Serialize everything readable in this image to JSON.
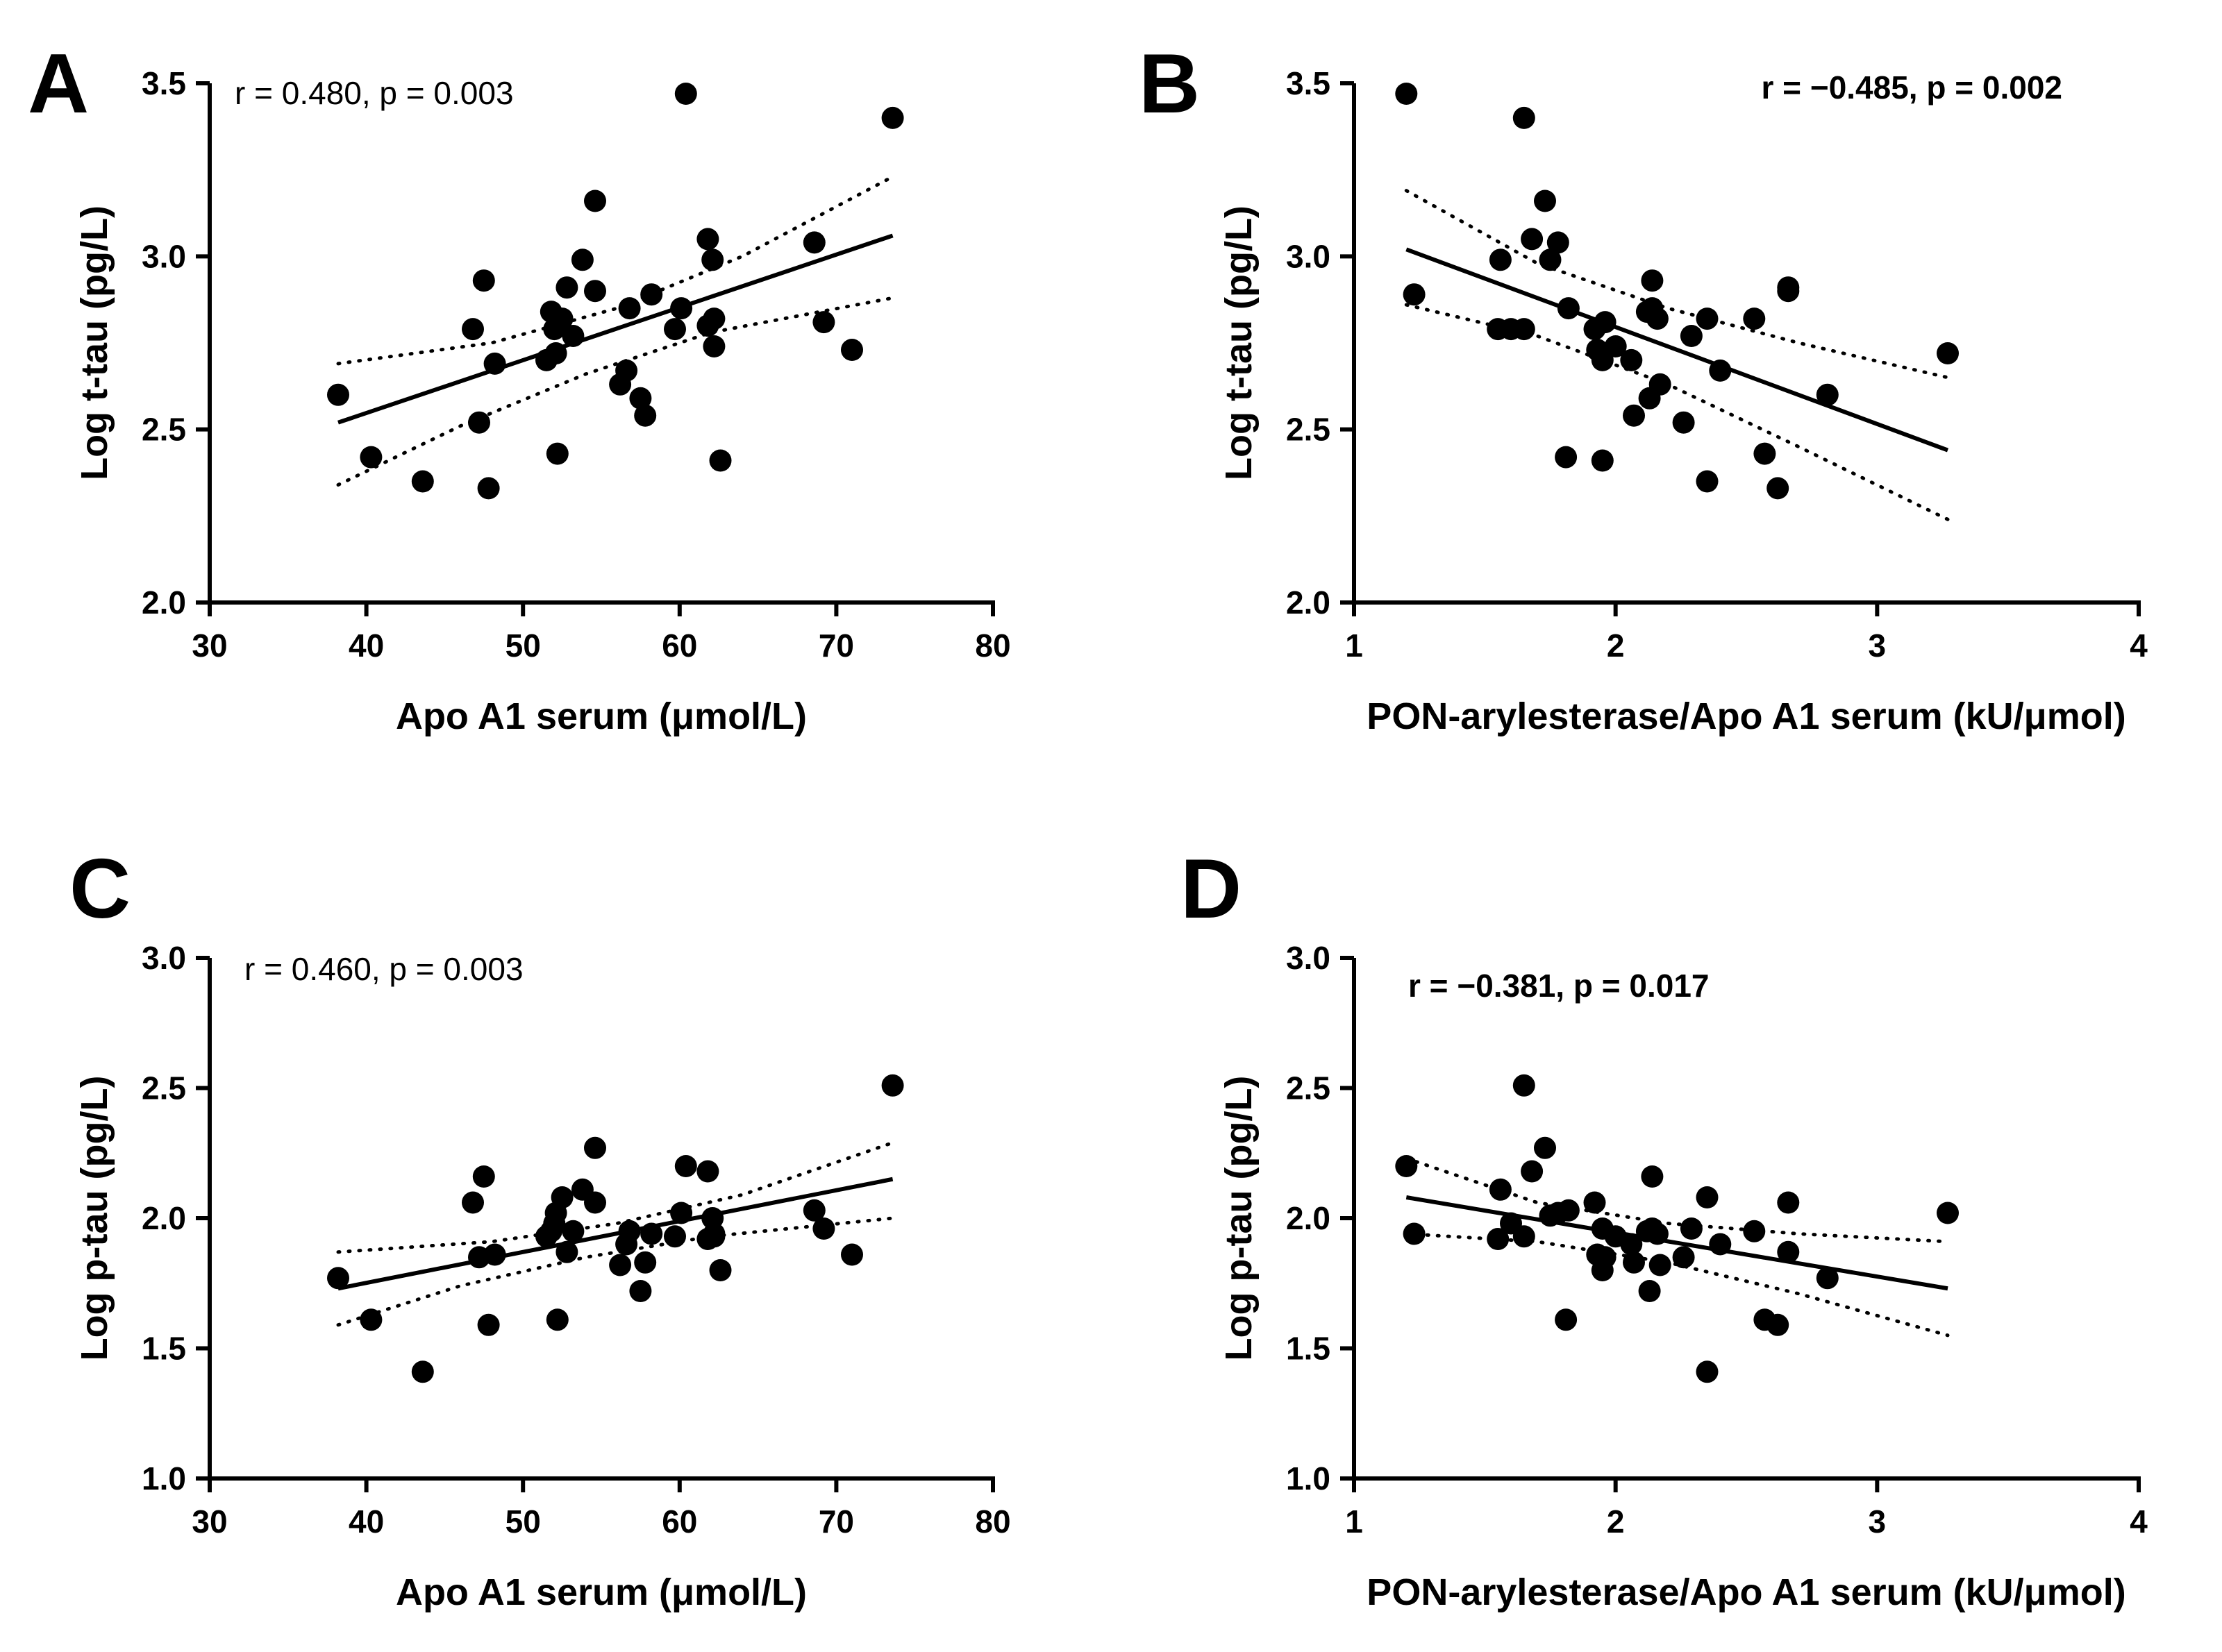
{
  "chart_data": [
    {
      "panel": "A",
      "type": "scatter",
      "xlabel": "Apo A1 serum (μmol/L)",
      "ylabel": "Log t-tau (pg/L)",
      "xlim": [
        30,
        80
      ],
      "ylim": [
        2.0,
        3.5
      ],
      "xticks": [
        30,
        40,
        50,
        60,
        70,
        80
      ],
      "yticks": [
        2.0,
        2.5,
        3.0,
        3.5
      ],
      "xtick_labels": [
        "30",
        "40",
        "50",
        "60",
        "70",
        "80"
      ],
      "ytick_labels": [
        "2.0",
        "2.5",
        "3.0",
        "3.5"
      ],
      "annotation": "r = 0.480, p = 0.003",
      "annotation_bold": false,
      "annotation_anchor": "top-left",
      "points": [
        [
          38.2,
          2.6
        ],
        [
          40.3,
          2.42
        ],
        [
          43.6,
          2.35
        ],
        [
          46.8,
          2.79
        ],
        [
          47.2,
          2.52
        ],
        [
          47.5,
          2.93
        ],
        [
          47.8,
          2.33
        ],
        [
          48.2,
          2.69
        ],
        [
          51.5,
          2.7
        ],
        [
          51.8,
          2.84
        ],
        [
          52.0,
          2.79
        ],
        [
          52.1,
          2.72
        ],
        [
          52.2,
          2.43
        ],
        [
          52.5,
          2.82
        ],
        [
          52.8,
          2.91
        ],
        [
          53.2,
          2.77
        ],
        [
          53.8,
          2.99
        ],
        [
          54.6,
          3.16
        ],
        [
          54.6,
          2.9
        ],
        [
          56.2,
          2.63
        ],
        [
          56.6,
          2.67
        ],
        [
          56.8,
          2.85
        ],
        [
          57.5,
          2.59
        ],
        [
          57.8,
          2.54
        ],
        [
          58.2,
          2.89
        ],
        [
          59.7,
          2.79
        ],
        [
          60.1,
          2.85
        ],
        [
          60.4,
          3.47
        ],
        [
          61.8,
          3.05
        ],
        [
          61.8,
          2.8
        ],
        [
          62.1,
          2.99
        ],
        [
          62.2,
          2.82
        ],
        [
          62.2,
          2.74
        ],
        [
          62.6,
          2.41
        ],
        [
          68.6,
          3.04
        ],
        [
          69.2,
          2.81
        ],
        [
          71.0,
          2.73
        ],
        [
          73.6,
          3.4
        ]
      ],
      "fit_line": [
        [
          38.2,
          2.52
        ],
        [
          73.6,
          3.06
        ]
      ],
      "ci_upper": [
        [
          38.2,
          2.69
        ],
        [
          48.0,
          2.75
        ],
        [
          56.0,
          2.85
        ],
        [
          64.0,
          3.0
        ],
        [
          73.6,
          3.23
        ]
      ],
      "ci_lower": [
        [
          38.2,
          2.34
        ],
        [
          46.0,
          2.51
        ],
        [
          54.0,
          2.66
        ],
        [
          62.0,
          2.78
        ],
        [
          73.6,
          2.88
        ]
      ]
    },
    {
      "panel": "B",
      "type": "scatter",
      "xlabel": "PON-arylesterase/Apo A1 serum (kU/μmol)",
      "ylabel": "Log t-tau (pg/L)",
      "xlim": [
        1,
        4
      ],
      "ylim": [
        2.0,
        3.5
      ],
      "xticks": [
        1,
        2,
        3,
        4
      ],
      "yticks": [
        2.0,
        2.5,
        3.0,
        3.5
      ],
      "xtick_labels": [
        "1",
        "2",
        "3",
        "4"
      ],
      "ytick_labels": [
        "2.0",
        "2.5",
        "3.0",
        "3.5"
      ],
      "annotation": "r = −0.485, p = 0.002",
      "annotation_bold": true,
      "annotation_anchor": "top-right",
      "points": [
        [
          1.2,
          3.47
        ],
        [
          1.23,
          2.89
        ],
        [
          1.55,
          2.79
        ],
        [
          1.56,
          2.99
        ],
        [
          1.6,
          2.79
        ],
        [
          1.65,
          2.79
        ],
        [
          1.65,
          3.4
        ],
        [
          1.68,
          3.05
        ],
        [
          1.73,
          3.16
        ],
        [
          1.75,
          2.99
        ],
        [
          1.78,
          3.04
        ],
        [
          1.81,
          2.42
        ],
        [
          1.82,
          2.85
        ],
        [
          1.92,
          2.79
        ],
        [
          1.93,
          2.73
        ],
        [
          1.95,
          2.41
        ],
        [
          1.95,
          2.7
        ],
        [
          1.96,
          2.81
        ],
        [
          2.0,
          2.74
        ],
        [
          2.06,
          2.7
        ],
        [
          2.07,
          2.54
        ],
        [
          2.12,
          2.84
        ],
        [
          2.13,
          2.59
        ],
        [
          2.14,
          2.85
        ],
        [
          2.14,
          2.93
        ],
        [
          2.16,
          2.82
        ],
        [
          2.17,
          2.63
        ],
        [
          2.26,
          2.52
        ],
        [
          2.29,
          2.77
        ],
        [
          2.35,
          2.82
        ],
        [
          2.35,
          2.35
        ],
        [
          2.4,
          2.67
        ],
        [
          2.53,
          2.82
        ],
        [
          2.57,
          2.43
        ],
        [
          2.62,
          2.33
        ],
        [
          2.66,
          2.91
        ],
        [
          2.66,
          2.9
        ],
        [
          2.81,
          2.6
        ],
        [
          3.27,
          2.72
        ]
      ],
      "fit_line": [
        [
          1.2,
          3.02
        ],
        [
          3.27,
          2.44
        ]
      ],
      "ci_upper": [
        [
          1.2,
          3.19
        ],
        [
          1.7,
          2.98
        ],
        [
          2.2,
          2.85
        ],
        [
          2.7,
          2.75
        ],
        [
          3.27,
          2.65
        ]
      ],
      "ci_lower": [
        [
          1.2,
          2.86
        ],
        [
          1.7,
          2.77
        ],
        [
          2.2,
          2.63
        ],
        [
          2.7,
          2.45
        ],
        [
          3.27,
          2.24
        ]
      ]
    },
    {
      "panel": "C",
      "type": "scatter",
      "xlabel": "Apo A1 serum (μmol/L)",
      "ylabel": "Log p-tau (pg/L)",
      "xlim": [
        30,
        80
      ],
      "ylim": [
        1.0,
        3.0
      ],
      "xticks": [
        30,
        40,
        50,
        60,
        70,
        80
      ],
      "yticks": [
        1.0,
        1.5,
        2.0,
        2.5,
        3.0
      ],
      "xtick_labels": [
        "30",
        "40",
        "50",
        "60",
        "70",
        "80"
      ],
      "ytick_labels": [
        "1.0",
        "1.5",
        "2.0",
        "2.5",
        "3.0"
      ],
      "annotation": "r = 0.460, p = 0.003",
      "annotation_bold": false,
      "annotation_anchor": "top-left",
      "points": [
        [
          38.2,
          1.77
        ],
        [
          40.3,
          1.61
        ],
        [
          43.6,
          1.41
        ],
        [
          46.8,
          2.06
        ],
        [
          47.2,
          1.85
        ],
        [
          47.5,
          2.16
        ],
        [
          47.8,
          1.59
        ],
        [
          48.2,
          1.86
        ],
        [
          51.5,
          1.93
        ],
        [
          51.8,
          1.95
        ],
        [
          52.0,
          1.98
        ],
        [
          52.1,
          2.02
        ],
        [
          52.2,
          1.61
        ],
        [
          52.5,
          2.08
        ],
        [
          52.8,
          1.87
        ],
        [
          53.2,
          1.95
        ],
        [
          53.8,
          2.11
        ],
        [
          54.6,
          2.27
        ],
        [
          54.6,
          2.06
        ],
        [
          56.2,
          1.82
        ],
        [
          56.6,
          1.9
        ],
        [
          56.8,
          1.95
        ],
        [
          57.5,
          1.72
        ],
        [
          57.8,
          1.83
        ],
        [
          58.2,
          1.94
        ],
        [
          59.7,
          1.93
        ],
        [
          60.1,
          2.02
        ],
        [
          60.4,
          2.2
        ],
        [
          61.8,
          2.18
        ],
        [
          61.8,
          1.92
        ],
        [
          62.1,
          2.0
        ],
        [
          62.2,
          1.94
        ],
        [
          62.2,
          1.93
        ],
        [
          62.6,
          1.8
        ],
        [
          68.6,
          2.03
        ],
        [
          69.2,
          1.96
        ],
        [
          71.0,
          1.86
        ],
        [
          73.6,
          2.51
        ]
      ],
      "fit_line": [
        [
          38.2,
          1.73
        ],
        [
          73.6,
          2.15
        ]
      ],
      "ci_upper": [
        [
          38.2,
          1.87
        ],
        [
          48.0,
          1.91
        ],
        [
          56.0,
          1.98
        ],
        [
          64.0,
          2.09
        ],
        [
          73.6,
          2.29
        ]
      ],
      "ci_lower": [
        [
          38.2,
          1.59
        ],
        [
          46.0,
          1.74
        ],
        [
          54.0,
          1.85
        ],
        [
          62.0,
          1.93
        ],
        [
          73.6,
          2.0
        ]
      ]
    },
    {
      "panel": "D",
      "type": "scatter",
      "xlabel": "PON-arylesterase/Apo A1 serum (kU/μmol)",
      "ylabel": "Log p-tau (pg/L)",
      "xlim": [
        1,
        4
      ],
      "ylim": [
        1.0,
        3.0
      ],
      "xticks": [
        1,
        2,
        3,
        4
      ],
      "yticks": [
        1.0,
        1.5,
        2.0,
        2.5,
        3.0
      ],
      "xtick_labels": [
        "1",
        "2",
        "3",
        "4"
      ],
      "ytick_labels": [
        "1.0",
        "1.5",
        "2.0",
        "2.5",
        "3.0"
      ],
      "annotation": "r = −0.381, p = 0.017",
      "annotation_bold": true,
      "annotation_anchor": "top-left",
      "points": [
        [
          1.2,
          2.2
        ],
        [
          1.23,
          1.94
        ],
        [
          1.55,
          1.92
        ],
        [
          1.56,
          2.11
        ],
        [
          1.6,
          1.98
        ],
        [
          1.65,
          1.93
        ],
        [
          1.65,
          2.51
        ],
        [
          1.68,
          2.18
        ],
        [
          1.73,
          2.27
        ],
        [
          1.75,
          2.01
        ],
        [
          1.78,
          2.02
        ],
        [
          1.81,
          1.61
        ],
        [
          1.82,
          2.03
        ],
        [
          1.92,
          2.06
        ],
        [
          1.93,
          1.86
        ],
        [
          1.95,
          1.8
        ],
        [
          1.95,
          1.96
        ],
        [
          1.96,
          1.85
        ],
        [
          2.0,
          1.93
        ],
        [
          2.06,
          1.9
        ],
        [
          2.07,
          1.83
        ],
        [
          2.12,
          1.95
        ],
        [
          2.13,
          1.72
        ],
        [
          2.14,
          2.16
        ],
        [
          2.14,
          1.96
        ],
        [
          2.16,
          1.94
        ],
        [
          2.17,
          1.82
        ],
        [
          2.26,
          1.85
        ],
        [
          2.29,
          1.96
        ],
        [
          2.35,
          2.08
        ],
        [
          2.35,
          1.41
        ],
        [
          2.4,
          1.9
        ],
        [
          2.53,
          1.95
        ],
        [
          2.57,
          1.61
        ],
        [
          2.62,
          1.59
        ],
        [
          2.66,
          2.06
        ],
        [
          2.66,
          1.87
        ],
        [
          2.81,
          1.77
        ],
        [
          3.27,
          2.02
        ]
      ],
      "fit_line": [
        [
          1.2,
          2.08
        ],
        [
          3.27,
          1.73
        ]
      ],
      "ci_upper": [
        [
          1.2,
          2.23
        ],
        [
          1.7,
          2.06
        ],
        [
          2.2,
          1.98
        ],
        [
          2.7,
          1.94
        ],
        [
          3.27,
          1.91
        ]
      ],
      "ci_lower": [
        [
          1.2,
          1.94
        ],
        [
          1.7,
          1.91
        ],
        [
          2.2,
          1.83
        ],
        [
          2.7,
          1.71
        ],
        [
          3.27,
          1.55
        ]
      ]
    }
  ]
}
